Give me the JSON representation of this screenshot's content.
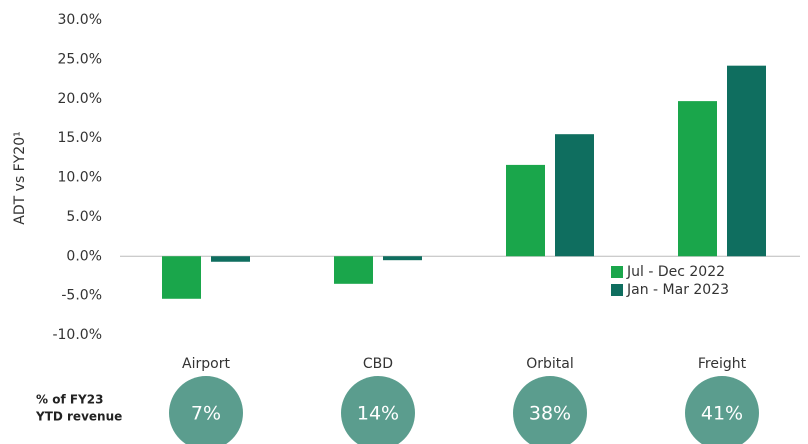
{
  "chart_data": {
    "type": "bar",
    "y_label": "ADT vs FY20¹",
    "categories": [
      "Airport",
      "CBD",
      "Orbital",
      "Freight"
    ],
    "series": [
      {
        "name": "Jul - Dec 2022",
        "color": "#1aa64b",
        "values": [
          -5.4,
          -3.5,
          11.6,
          19.7
        ]
      },
      {
        "name": "Jan - Mar 2023",
        "color": "#0f6e5f",
        "values": [
          -0.7,
          -0.5,
          15.5,
          24.2
        ]
      }
    ],
    "ylim": [
      -10,
      30
    ],
    "yticks": [
      {
        "value": -10,
        "label": "-10.0%"
      },
      {
        "value": -5,
        "label": "-5.0%"
      },
      {
        "value": 0,
        "label": "0.0%"
      },
      {
        "value": 5,
        "label": "5.0%"
      },
      {
        "value": 10,
        "label": "10.0%"
      },
      {
        "value": 15,
        "label": "15.0%"
      },
      {
        "value": 20,
        "label": "20.0%"
      },
      {
        "value": 25,
        "label": "25.0%"
      },
      {
        "value": 30,
        "label": "30.0%"
      }
    ],
    "grid": false,
    "legend": "lower right",
    "revenue_share": {
      "label": [
        "% of FY23",
        "YTD revenue"
      ],
      "color": "#5b9d8e",
      "values": [
        7,
        14,
        38,
        41
      ],
      "value_labels": [
        "7%",
        "14%",
        "38%",
        "41%"
      ]
    }
  }
}
